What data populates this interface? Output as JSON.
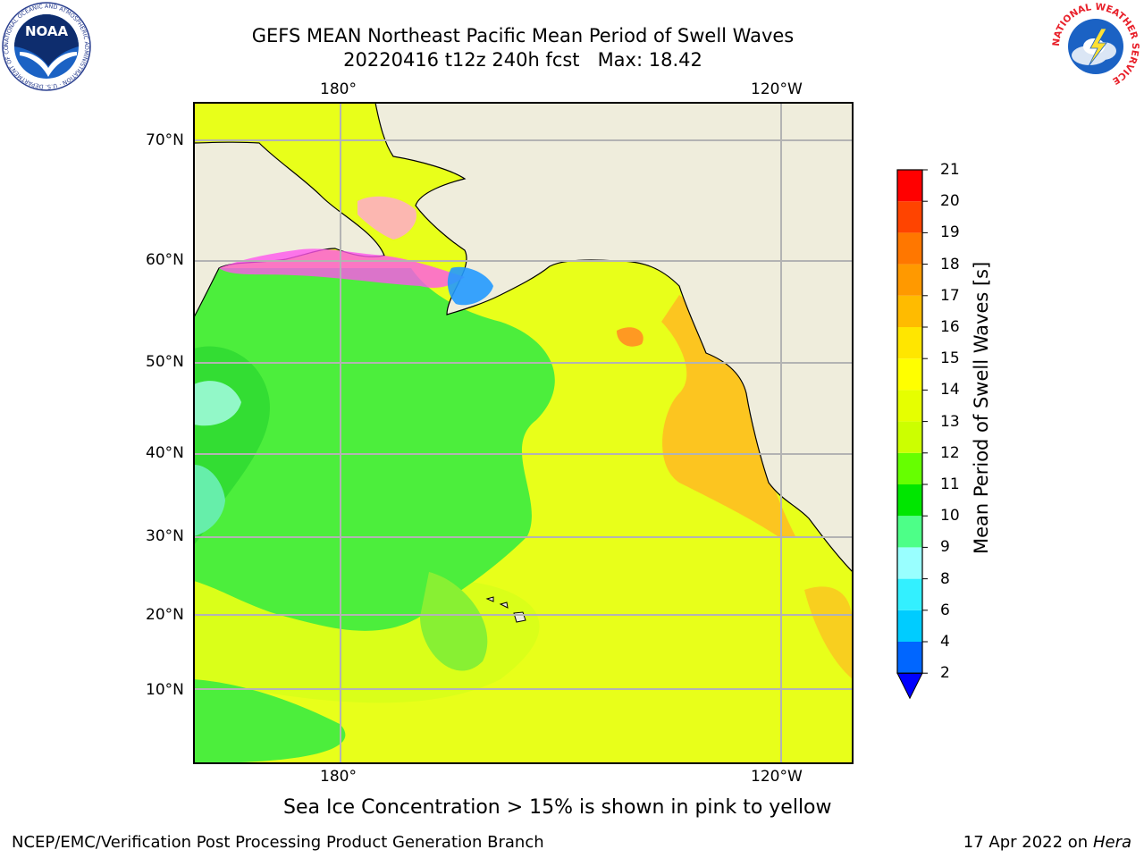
{
  "title": {
    "line1": "GEFS MEAN Northeast Pacific Mean Period of Swell Waves",
    "line2": "20220416 t12z 240h fcst   Max: 18.42"
  },
  "map": {
    "lon_labels": [
      "180°",
      "120°W"
    ],
    "lat_labels": [
      "70°N",
      "60°N",
      "50°N",
      "40°N",
      "30°N",
      "20°N",
      "10°N"
    ]
  },
  "colorbar": {
    "label": "Mean Period of Swell Waves [s]",
    "ticks": [
      "2",
      "4",
      "6",
      "8",
      "9",
      "10",
      "11",
      "12",
      "13",
      "14",
      "15",
      "16",
      "17",
      "18",
      "19",
      "20",
      "21"
    ],
    "colors": [
      "#0066ff",
      "#00ccff",
      "#33f0ff",
      "#99ffff",
      "#4dff88",
      "#00e600",
      "#66ff00",
      "#ccff00",
      "#e6ff00",
      "#ffff00",
      "#ffe600",
      "#ffbb00",
      "#ff9900",
      "#ff7700",
      "#ff4400",
      "#ff0000"
    ],
    "extend_color": "#0000ff"
  },
  "colors": {
    "land": "#efeddc",
    "grid": "#b3b3b3",
    "ice": "#ff55ee",
    "ocean_green": "#4cee3c",
    "ocean_yellow": "#e8ff1a",
    "ocean_orange": "#ffbb22"
  },
  "caption": "Sea Ice Concentration > 15% is shown in pink to yellow",
  "footer": {
    "left": "NCEP/EMC/Verification Post Processing Product Generation Branch",
    "right_date": "17 Apr 2022 on ",
    "right_host": "Hera"
  },
  "logos": {
    "noaa": "NOAA",
    "noaa_ring": "NATIONAL OCEANIC AND ATMOSPHERIC ADMINISTRATION · U.S. DEPARTMENT OF COMMERCE",
    "nws": "NATIONAL WEATHER SERVICE"
  }
}
